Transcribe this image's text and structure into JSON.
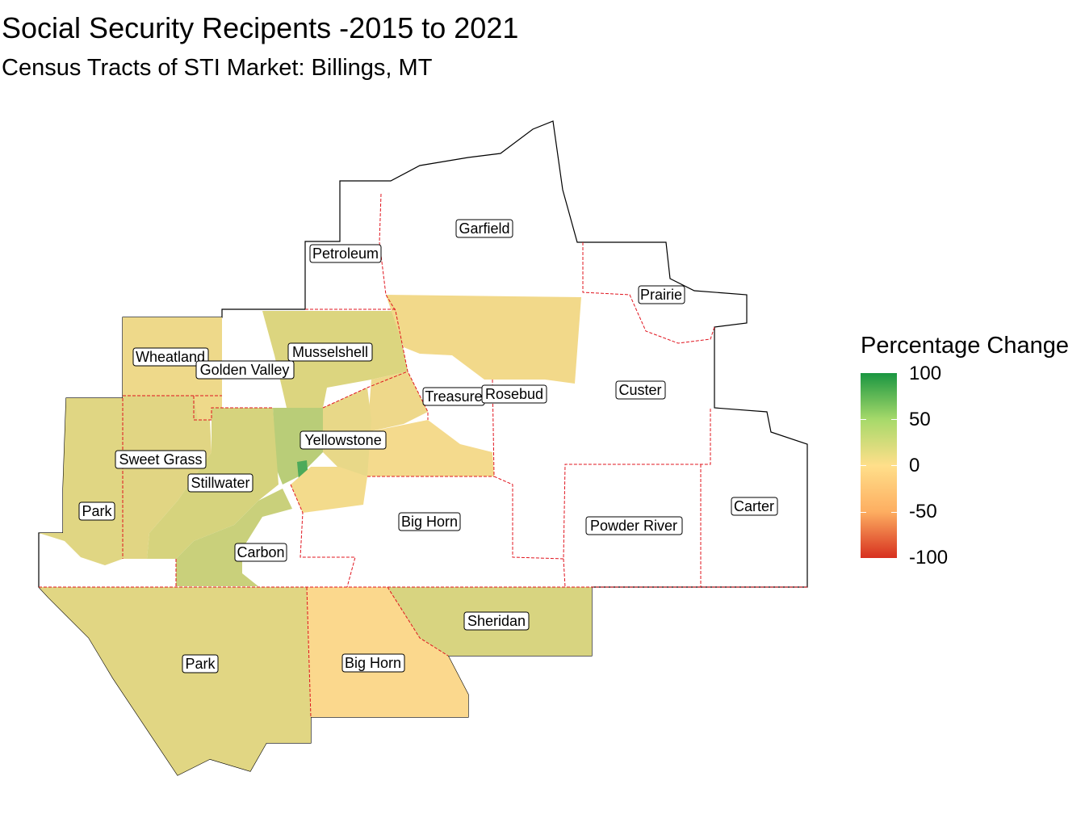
{
  "title": "Social Security Recipents -2015 to 2021",
  "subtitle": "Census Tracts of STI Market: Billings, MT",
  "legend": {
    "title": "Percentage Change",
    "ticks": [
      "100",
      "50",
      "0",
      "-50",
      "-100"
    ],
    "colors": [
      "#1a9641",
      "#a6d96a",
      "#ffdf8a",
      "#fdae61",
      "#d7301f"
    ]
  },
  "regions": {
    "garfield": "Garfield",
    "petroleum": "Petroleum",
    "prairie": "Prairie",
    "wheatland": "Wheatland",
    "musselshell": "Musselshell",
    "golden_valley": "Golden Valley",
    "treasure": "Treasure",
    "rosebud": "Rosebud",
    "custer": "Custer",
    "yellowstone": "Yellowstone",
    "sweet_grass": "Sweet Grass",
    "stillwater": "Stillwater",
    "park_mt": "Park",
    "big_horn_mt": "Big Horn",
    "carter": "Carter",
    "powder_river": "Powder River",
    "carbon": "Carbon",
    "sheridan": "Sheridan",
    "park_wy": "Park",
    "big_horn_wy": "Big Horn"
  }
}
